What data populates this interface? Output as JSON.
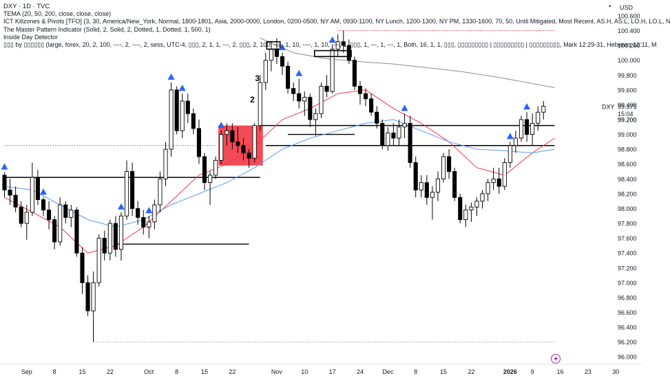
{
  "header": {
    "symbol_line": "DXY · 1D · TVC",
    "indicators": [
      "TEMA (20, 50, 200, close, close, close)",
      "ICT Killzones & Pivots [TFO] (3, 30, America/New_York, Normal, 1800-1801, Asia, 2000-0000, London, 0200-0500, NY AM, 0930-1100, NY Lunch, 1200-1300, NY PM, 1330-1600, 70, 50, Until Mitigated, Most Recent, AS.H, AS.L, LO.H, LO.L, N",
      "The Master Pattern Indicator (Solid, 2, Solid, 2, Dotted, 1, Dotted, 1, 500, 1)",
      "Inside Day Detector",
      "▯▯▯ by ▯▯▯▯▯▯ (large, forex, 20, 2, 100, ----, 2, ----, 2, sess, UTC-4, ▯▯▯, 2, 1, 1, ---, 2, ▯▯▯, 2, 100, ----, 1, 10, ----, 1, 10, ----, 1, ▯▯▯, 1, ---, 1, ---, 1, Both, 16, 1, 1, ▯▯▯, ▯▯▯▯▯▯▯▯▯ | ▯▯▯▯▯▯▯▯▯ | ▯▯▯▯▯▯▯▯▯, Mark 12:29-31, Hebrews 12:11, M"
    ],
    "currency": "USD",
    "menu_glyph": "•"
  },
  "chart_data": {
    "type": "candlestick",
    "symbol": "DXY",
    "timeframe": "1D",
    "ylim": [
      95.9,
      100.72
    ],
    "price_ticks": [
      "100.600",
      "100.400",
      "100.200",
      "100.000",
      "99.800",
      "99.600",
      "99.400",
      "99.200",
      "99.000",
      "98.800",
      "98.600",
      "98.400",
      "98.200",
      "98.000",
      "97.800",
      "97.600",
      "97.400",
      "97.200",
      "97.000",
      "96.800",
      "96.600",
      "96.400",
      "96.200",
      "96.000"
    ],
    "time_ticks": [
      {
        "label": "Sep",
        "bar": 4,
        "bold": false
      },
      {
        "label": "8",
        "bar": 9,
        "bold": false
      },
      {
        "label": "15",
        "bar": 14,
        "bold": false
      },
      {
        "label": "22",
        "bar": 19,
        "bold": false
      },
      {
        "label": "Oct",
        "bar": 26,
        "bold": false
      },
      {
        "label": "8",
        "bar": 31,
        "bold": false
      },
      {
        "label": "15",
        "bar": 36,
        "bold": false
      },
      {
        "label": "22",
        "bar": 41,
        "bold": false
      },
      {
        "label": "Nov",
        "bar": 49,
        "bold": false
      },
      {
        "label": "10",
        "bar": 54,
        "bold": false
      },
      {
        "label": "17",
        "bar": 59,
        "bold": false
      },
      {
        "label": "24",
        "bar": 64,
        "bold": false
      },
      {
        "label": "Dec",
        "bar": 69,
        "bold": false
      },
      {
        "label": "8",
        "bar": 74,
        "bold": false
      },
      {
        "label": "15",
        "bar": 79,
        "bold": false
      },
      {
        "label": "22",
        "bar": 84,
        "bold": false
      },
      {
        "label": "2026",
        "bar": 91,
        "bold": true
      },
      {
        "label": "9",
        "bar": 95,
        "bold": false
      },
      {
        "label": "16",
        "bar": 100,
        "bold": false
      },
      {
        "label": "23",
        "bar": 105,
        "bold": false
      },
      {
        "label": "30",
        "bar": 110,
        "bold": false
      }
    ],
    "last_price": {
      "symbol": "DXY",
      "value": "99.375",
      "countdown": "15:04",
      "low_value": "99.200"
    },
    "candles": [
      [
        98.45,
        98.49,
        98.15,
        98.25
      ],
      [
        98.25,
        98.4,
        98.05,
        98.18
      ],
      [
        98.18,
        98.3,
        97.95,
        98.02
      ],
      [
        98.02,
        98.1,
        97.75,
        97.8
      ],
      [
        97.8,
        98.05,
        97.58,
        97.95
      ],
      [
        97.95,
        98.62,
        97.9,
        98.42
      ],
      [
        98.42,
        98.52,
        98.05,
        98.12
      ],
      [
        98.12,
        98.15,
        97.9,
        97.98
      ],
      [
        97.98,
        98.1,
        97.72,
        97.85
      ],
      [
        97.85,
        97.9,
        97.45,
        97.55
      ],
      [
        97.55,
        98.15,
        97.5,
        98.05
      ],
      [
        98.05,
        98.1,
        97.8,
        97.88
      ],
      [
        97.88,
        98.05,
        97.75,
        97.98
      ],
      [
        97.98,
        98.02,
        97.35,
        97.4
      ],
      [
        97.4,
        97.48,
        96.85,
        97.0
      ],
      [
        97.0,
        97.1,
        96.55,
        96.62
      ],
      [
        96.62,
        97.15,
        96.2,
        97.0
      ],
      [
        97.0,
        97.65,
        96.95,
        97.6
      ],
      [
        97.6,
        97.7,
        97.3,
        97.4
      ],
      [
        97.4,
        97.85,
        97.3,
        97.8
      ],
      [
        97.8,
        97.9,
        97.35,
        97.45
      ],
      [
        97.45,
        97.95,
        97.3,
        97.9
      ],
      [
        97.9,
        98.65,
        97.85,
        98.5
      ],
      [
        98.5,
        98.62,
        97.9,
        98.0
      ],
      [
        98.0,
        98.1,
        97.78,
        97.88
      ],
      [
        97.88,
        97.98,
        97.65,
        97.75
      ],
      [
        97.75,
        97.9,
        97.6,
        97.82
      ],
      [
        97.82,
        98.12,
        97.72,
        98.05
      ],
      [
        98.05,
        98.5,
        97.95,
        98.4
      ],
      [
        98.4,
        98.9,
        98.3,
        98.8
      ],
      [
        98.8,
        99.7,
        98.7,
        99.6
      ],
      [
        99.6,
        99.65,
        99.0,
        99.05
      ],
      [
        99.05,
        99.55,
        98.95,
        99.45
      ],
      [
        99.45,
        99.55,
        99.15,
        99.28
      ],
      [
        99.28,
        99.35,
        99.0,
        99.08
      ],
      [
        99.08,
        99.2,
        98.6,
        98.7
      ],
      [
        98.7,
        98.75,
        98.25,
        98.35
      ],
      [
        98.35,
        98.5,
        98.05,
        98.45
      ],
      [
        98.45,
        98.7,
        98.4,
        98.65
      ],
      [
        98.65,
        99.05,
        98.6,
        99.0
      ],
      [
        99.0,
        99.15,
        98.85,
        99.05
      ],
      [
        99.05,
        99.15,
        98.8,
        98.9
      ],
      [
        98.9,
        99.1,
        98.75,
        98.85
      ],
      [
        98.85,
        98.95,
        98.65,
        98.75
      ],
      [
        98.75,
        98.8,
        98.55,
        98.68
      ],
      [
        98.68,
        99.15,
        98.62,
        99.12
      ],
      [
        99.12,
        99.8,
        99.05,
        99.7
      ],
      [
        99.7,
        100.1,
        99.6,
        100.0
      ],
      [
        100.0,
        100.25,
        99.85,
        100.15
      ],
      [
        100.15,
        100.3,
        99.95,
        100.05
      ],
      [
        100.05,
        100.1,
        99.8,
        99.92
      ],
      [
        99.92,
        99.98,
        99.55,
        99.62
      ],
      [
        99.62,
        99.7,
        99.45,
        99.55
      ],
      [
        99.55,
        99.75,
        99.35,
        99.45
      ],
      [
        99.45,
        99.58,
        99.25,
        99.5
      ],
      [
        99.5,
        99.55,
        99.1,
        99.2
      ],
      [
        99.2,
        99.35,
        98.98,
        99.28
      ],
      [
        99.28,
        99.7,
        99.22,
        99.65
      ],
      [
        99.65,
        99.8,
        99.5,
        99.58
      ],
      [
        99.58,
        100.2,
        99.55,
        100.15
      ],
      [
        100.15,
        100.35,
        100.05,
        100.25
      ],
      [
        100.25,
        100.4,
        100.1,
        100.2
      ],
      [
        100.2,
        100.28,
        99.95,
        100.0
      ],
      [
        100.0,
        100.05,
        99.6,
        99.65
      ],
      [
        99.65,
        99.72,
        99.4,
        99.55
      ],
      [
        99.55,
        99.62,
        99.38,
        99.48
      ],
      [
        99.48,
        99.55,
        99.25,
        99.3
      ],
      [
        99.3,
        99.38,
        99.08,
        99.15
      ],
      [
        99.15,
        99.2,
        98.8,
        98.85
      ],
      [
        98.85,
        99.1,
        98.78,
        99.02
      ],
      [
        99.02,
        99.15,
        98.85,
        98.95
      ],
      [
        98.95,
        99.2,
        98.85,
        99.1
      ],
      [
        99.1,
        99.28,
        98.95,
        99.15
      ],
      [
        99.15,
        99.25,
        98.55,
        98.62
      ],
      [
        98.62,
        98.7,
        98.15,
        98.25
      ],
      [
        98.25,
        98.45,
        98.15,
        98.35
      ],
      [
        98.35,
        98.45,
        98.05,
        98.15
      ],
      [
        98.15,
        98.3,
        97.85,
        98.22
      ],
      [
        98.22,
        98.5,
        98.1,
        98.4
      ],
      [
        98.4,
        98.75,
        98.35,
        98.7
      ],
      [
        98.7,
        98.8,
        98.4,
        98.5
      ],
      [
        98.5,
        98.55,
        98.1,
        98.15
      ],
      [
        98.15,
        98.2,
        97.8,
        97.85
      ],
      [
        97.85,
        98.05,
        97.75,
        97.98
      ],
      [
        97.98,
        98.08,
        97.82,
        98.02
      ],
      [
        98.02,
        98.15,
        97.9,
        98.1
      ],
      [
        98.1,
        98.25,
        98.0,
        98.2
      ],
      [
        98.2,
        98.4,
        98.1,
        98.35
      ],
      [
        98.35,
        98.55,
        98.25,
        98.4
      ],
      [
        98.4,
        98.55,
        98.2,
        98.3
      ],
      [
        98.3,
        98.68,
        98.25,
        98.62
      ],
      [
        98.62,
        98.9,
        98.55,
        98.85
      ],
      [
        98.85,
        99.05,
        98.75,
        98.95
      ],
      [
        98.95,
        99.25,
        98.9,
        99.2
      ],
      [
        99.2,
        99.3,
        98.9,
        99.0
      ],
      [
        99.0,
        99.28,
        98.85,
        99.15
      ],
      [
        99.15,
        99.38,
        99.05,
        99.3
      ],
      [
        99.3,
        99.45,
        99.2,
        99.38
      ]
    ],
    "series": [
      {
        "name": "TEMA 20",
        "color": "#f23645",
        "values": [
          [
            0,
            98.15
          ],
          [
            5,
            97.95
          ],
          [
            10,
            97.75
          ],
          [
            15,
            97.4
          ],
          [
            20,
            97.5
          ],
          [
            25,
            97.75
          ],
          [
            30,
            98.1
          ],
          [
            35,
            98.45
          ],
          [
            40,
            98.6
          ],
          [
            45,
            98.85
          ],
          [
            50,
            99.2
          ],
          [
            55,
            99.35
          ],
          [
            60,
            99.55
          ],
          [
            65,
            99.6
          ],
          [
            70,
            99.35
          ],
          [
            75,
            99.15
          ],
          [
            80,
            98.9
          ],
          [
            85,
            98.55
          ],
          [
            90,
            98.45
          ],
          [
            95,
            98.75
          ],
          [
            99,
            98.95
          ]
        ]
      },
      {
        "name": "TEMA 50",
        "color": "#5b9cf6",
        "values": [
          [
            0,
            98.3
          ],
          [
            5,
            98.25
          ],
          [
            10,
            98.05
          ],
          [
            15,
            97.85
          ],
          [
            20,
            97.75
          ],
          [
            25,
            97.85
          ],
          [
            30,
            98.05
          ],
          [
            35,
            98.2
          ],
          [
            40,
            98.35
          ],
          [
            45,
            98.55
          ],
          [
            50,
            98.8
          ],
          [
            55,
            98.95
          ],
          [
            60,
            99.05
          ],
          [
            65,
            99.15
          ],
          [
            70,
            99.2
          ],
          [
            75,
            99.05
          ],
          [
            80,
            98.9
          ],
          [
            85,
            98.8
          ],
          [
            90,
            98.78
          ],
          [
            95,
            98.75
          ],
          [
            99,
            98.8
          ]
        ]
      },
      {
        "name": "TEMA 200",
        "color": "#8c8c8c",
        "values": [
          [
            46,
            100.3
          ],
          [
            52,
            100.1
          ],
          [
            58,
            100.02
          ],
          [
            64,
            99.98
          ],
          [
            70,
            99.95
          ],
          [
            76,
            99.9
          ],
          [
            82,
            99.85
          ],
          [
            88,
            99.78
          ],
          [
            94,
            99.7
          ],
          [
            99,
            99.63
          ]
        ]
      }
    ],
    "levels": [
      {
        "price": 98.42,
        "from": 0,
        "to": 46,
        "color": "#000000",
        "style": "solid"
      },
      {
        "price": 97.52,
        "from": 20,
        "to": 44,
        "color": "#000000",
        "style": "solid"
      },
      {
        "price": 99.0,
        "from": 51,
        "to": 63,
        "color": "#000000",
        "style": "solid"
      },
      {
        "price": 98.85,
        "from": 47,
        "to": 99,
        "color": "#000000",
        "style": "solid"
      },
      {
        "price": 99.12,
        "from": 46,
        "to": 99,
        "color": "#000000",
        "style": "solid"
      },
      {
        "price": 100.4,
        "from": 60,
        "to": 99,
        "color": "#f23645",
        "style": "dotted"
      },
      {
        "price": 98.85,
        "from": 0,
        "to": 38,
        "color": "#f23645",
        "style": "dotted"
      },
      {
        "price": 96.2,
        "from": 16,
        "to": 99,
        "color": "#9aa0a6",
        "style": "dotted"
      }
    ],
    "zones": [
      {
        "from": 38.5,
        "to": 46.5,
        "top": 99.12,
        "bottom": 98.58,
        "color": "#f23645"
      }
    ],
    "outline_boxes": [
      {
        "from": 47.2,
        "to": 49.6,
        "top": 100.25,
        "bottom": 100.15
      },
      {
        "from": 55.8,
        "to": 62.4,
        "top": 100.13,
        "bottom": 100.05
      }
    ],
    "markers": [
      0,
      7,
      21,
      26,
      30,
      32,
      39,
      50,
      53,
      59,
      72,
      91,
      94
    ],
    "labels": [
      {
        "bar": 45.5,
        "price": 99.72,
        "text": "3"
      },
      {
        "bar": 44.6,
        "price": 99.43,
        "text": "2"
      }
    ]
  }
}
